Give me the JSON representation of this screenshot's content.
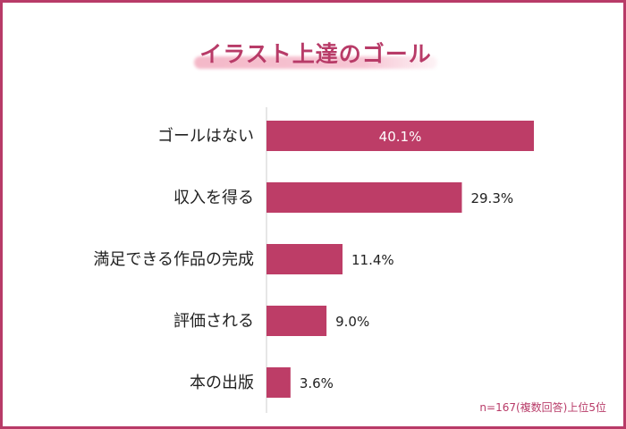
{
  "title": "イラスト上達のゴール",
  "note": "n=167(複数回答)上位5位",
  "colors": {
    "accent": "#b83b68",
    "bar": "#bd3d67",
    "label_inside": "#ffffff",
    "text": "#222222"
  },
  "chart_data": {
    "type": "bar",
    "orientation": "horizontal",
    "title": "イラスト上達のゴール",
    "categories": [
      "ゴールはない",
      "収入を得る",
      "満足できる作品の完成",
      "評価される",
      "本の出版"
    ],
    "values": [
      40.1,
      29.3,
      11.4,
      9.0,
      3.6
    ],
    "value_labels": [
      "40.1%",
      "29.3%",
      "11.4%",
      "9.0%",
      "3.6%"
    ],
    "unit": "%",
    "xlim": [
      0,
      40.1
    ],
    "grid": false,
    "legend": "none"
  }
}
